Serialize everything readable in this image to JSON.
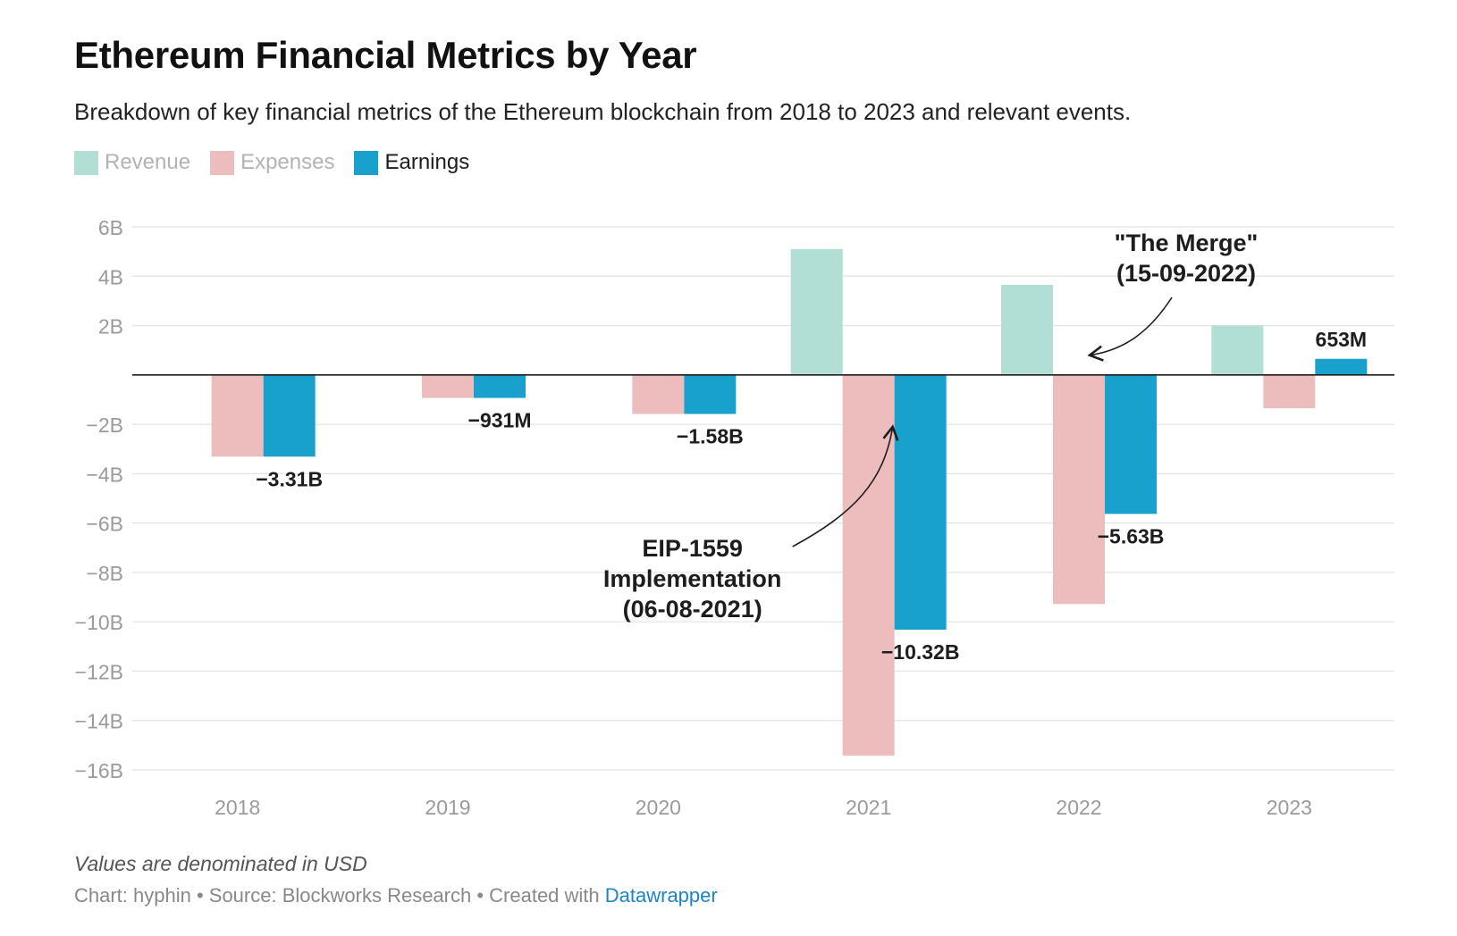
{
  "title": "Ethereum Financial Metrics by Year",
  "subtitle": "Breakdown of key financial metrics of the Ethereum blockchain from 2018 to 2023 and relevant events.",
  "legend": [
    {
      "label": "Revenue",
      "color": "#b2dfd5",
      "muted": true
    },
    {
      "label": "Expenses",
      "color": "#edbcbc",
      "muted": true
    },
    {
      "label": "Earnings",
      "color": "#18a1cd",
      "muted": false
    }
  ],
  "note": "Values are denominated in USD",
  "credit": {
    "text": "Chart: hyphin • Source: Blockworks Research • Created with ",
    "link": "Datawrapper"
  },
  "chart_data": {
    "type": "bar",
    "categories": [
      "2018",
      "2019",
      "2020",
      "2021",
      "2022",
      "2023"
    ],
    "series": [
      {
        "name": "Revenue",
        "color": "#b2dfd5",
        "values": [
          0,
          0,
          0,
          5.1,
          3.65,
          2.0
        ]
      },
      {
        "name": "Expenses",
        "color": "#edbcbc",
        "values": [
          -3.31,
          -0.931,
          -1.58,
          -15.42,
          -9.28,
          -1.35
        ]
      },
      {
        "name": "Earnings",
        "color": "#18a1cd",
        "values": [
          -3.31,
          -0.931,
          -1.58,
          -10.32,
          -5.63,
          0.653
        ]
      }
    ],
    "earnings_labels": [
      "−3.31B",
      "−931M",
      "−1.58B",
      "−10.32B",
      "−5.63B",
      "653M"
    ],
    "ylim": [
      -16,
      6
    ],
    "yticks": [
      6,
      4,
      2,
      0,
      -2,
      -4,
      -6,
      -8,
      -10,
      -12,
      -14,
      -16
    ],
    "ytick_labels": [
      "6B",
      "4B",
      "2B",
      "",
      "−2B",
      "−4B",
      "−6B",
      "−8B",
      "−10B",
      "−12B",
      "−14B",
      "−16B"
    ],
    "grid": true,
    "annotations": [
      {
        "lines": [
          "\"The Merge\"",
          "(15-09-2022)"
        ],
        "category": "2022",
        "value": 0.8
      },
      {
        "lines": [
          "EIP-1559",
          "Implementation",
          "(06-08-2021)"
        ],
        "category": "2021",
        "value": -2.1
      }
    ]
  }
}
